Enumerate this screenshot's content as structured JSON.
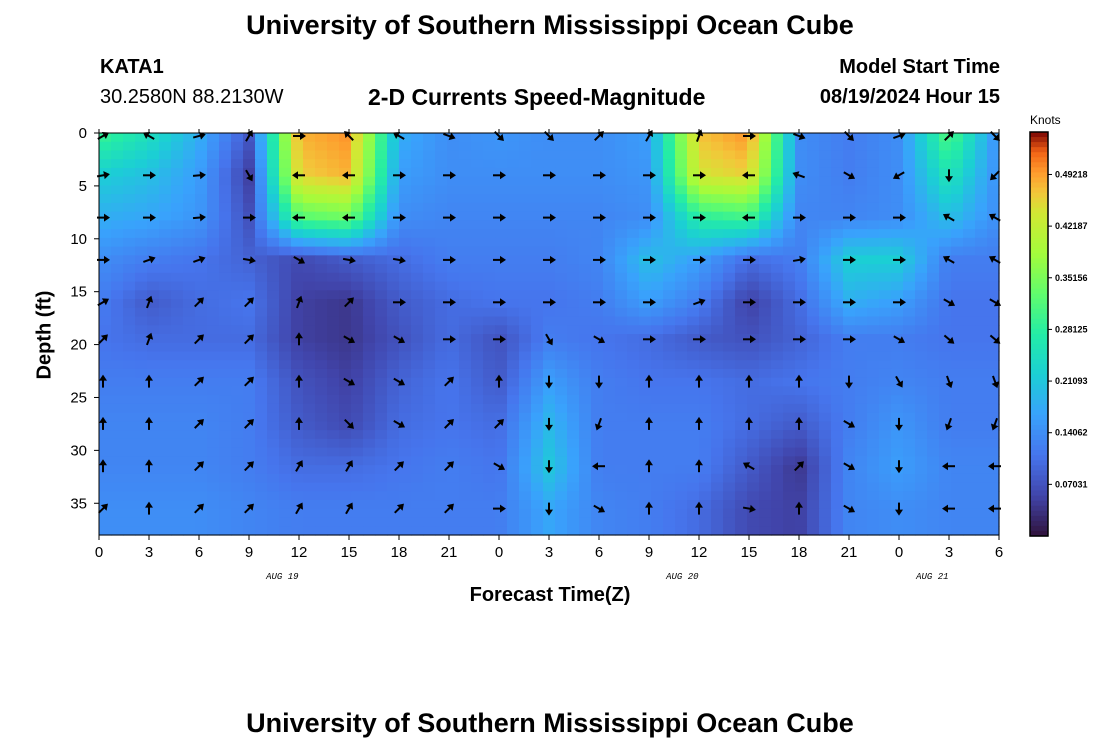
{
  "header": {
    "title": "University of Southern Mississippi Ocean Cube",
    "station": "KATA1",
    "coords": "30.2580N  88.2130W",
    "subtitle": "2-D Currents Speed-Magnitude",
    "model_start_label": "Model Start Time",
    "model_start_value": "08/19/2024 Hour 15"
  },
  "footer": {
    "title": "University of Southern Mississippi Ocean Cube"
  },
  "chart_data": {
    "type": "heatmap",
    "title": "2-D Currents Speed-Magnitude",
    "xlabel": "Forecast Time(Z)",
    "ylabel": "Depth (ft)",
    "colorbar_label": "Knots",
    "x_tick_labels": [
      "0",
      "3",
      "6",
      "9",
      "12",
      "15",
      "18",
      "21",
      "0",
      "3",
      "6",
      "9",
      "12",
      "15",
      "18",
      "21",
      "0",
      "3",
      "6"
    ],
    "date_labels": [
      {
        "label": "AUG 19",
        "hour": 11
      },
      {
        "label": "AUG 20",
        "hour": 35
      },
      {
        "label": "AUG 21",
        "hour": 50
      }
    ],
    "x_range_hours": [
      0,
      54
    ],
    "y_ticks": [
      0,
      5,
      10,
      15,
      20,
      25,
      30,
      35
    ],
    "ylim": [
      38,
      0
    ],
    "colorbar_ticks": [
      "0.07031",
      "0.14062",
      "0.21093",
      "0.28125",
      "0.35156",
      "0.42187",
      "0.49218"
    ],
    "colorbar_range": [
      0,
      0.55
    ],
    "depths": [
      0,
      4,
      8,
      12,
      16,
      19.5,
      23.5,
      27.5,
      31.5,
      35.5
    ],
    "times": [
      0,
      3,
      6,
      9,
      12,
      15,
      18,
      21,
      24,
      27,
      30,
      33,
      36,
      39,
      42,
      45,
      48,
      51,
      54
    ],
    "speed": [
      [
        0.3,
        0.25,
        0.18,
        0.08,
        0.48,
        0.5,
        0.18,
        0.14,
        0.15,
        0.14,
        0.14,
        0.16,
        0.47,
        0.5,
        0.14,
        0.12,
        0.14,
        0.32,
        0.14
      ],
      [
        0.22,
        0.2,
        0.16,
        0.05,
        0.46,
        0.48,
        0.16,
        0.14,
        0.14,
        0.14,
        0.14,
        0.15,
        0.44,
        0.46,
        0.14,
        0.12,
        0.14,
        0.26,
        0.14
      ],
      [
        0.18,
        0.17,
        0.15,
        0.07,
        0.32,
        0.34,
        0.14,
        0.13,
        0.13,
        0.13,
        0.13,
        0.14,
        0.28,
        0.3,
        0.13,
        0.13,
        0.14,
        0.2,
        0.14
      ],
      [
        0.14,
        0.12,
        0.11,
        0.09,
        0.06,
        0.08,
        0.1,
        0.12,
        0.12,
        0.12,
        0.13,
        0.2,
        0.16,
        0.1,
        0.12,
        0.22,
        0.22,
        0.12,
        0.12
      ],
      [
        0.12,
        0.08,
        0.1,
        0.11,
        0.05,
        0.04,
        0.08,
        0.1,
        0.11,
        0.11,
        0.12,
        0.16,
        0.12,
        0.05,
        0.1,
        0.18,
        0.16,
        0.11,
        0.11
      ],
      [
        0.11,
        0.1,
        0.1,
        0.1,
        0.05,
        0.04,
        0.07,
        0.1,
        0.07,
        0.12,
        0.11,
        0.1,
        0.08,
        0.07,
        0.09,
        0.12,
        0.12,
        0.11,
        0.11
      ],
      [
        0.12,
        0.12,
        0.12,
        0.12,
        0.07,
        0.05,
        0.09,
        0.11,
        0.08,
        0.16,
        0.12,
        0.11,
        0.11,
        0.1,
        0.11,
        0.12,
        0.13,
        0.12,
        0.12
      ],
      [
        0.13,
        0.13,
        0.13,
        0.12,
        0.08,
        0.06,
        0.1,
        0.11,
        0.1,
        0.19,
        0.12,
        0.12,
        0.12,
        0.1,
        0.08,
        0.12,
        0.15,
        0.12,
        0.12
      ],
      [
        0.13,
        0.13,
        0.13,
        0.12,
        0.1,
        0.1,
        0.11,
        0.12,
        0.11,
        0.21,
        0.12,
        0.12,
        0.12,
        0.08,
        0.04,
        0.13,
        0.16,
        0.13,
        0.13
      ],
      [
        0.14,
        0.14,
        0.14,
        0.13,
        0.12,
        0.12,
        0.12,
        0.12,
        0.12,
        0.17,
        0.13,
        0.12,
        0.1,
        0.06,
        0.05,
        0.13,
        0.14,
        0.13,
        0.13
      ]
    ],
    "arrow_directions_deg": [
      [
        60,
        300,
        75,
        30,
        90,
        315,
        300,
        110,
        135,
        135,
        45,
        30,
        20,
        90,
        110,
        135,
        70,
        45,
        135
      ],
      [
        80,
        90,
        85,
        150,
        270,
        270,
        90,
        90,
        90,
        90,
        90,
        90,
        90,
        270,
        290,
        120,
        240,
        180,
        225
      ],
      [
        90,
        90,
        85,
        90,
        270,
        270,
        90,
        90,
        90,
        90,
        90,
        90,
        90,
        270,
        90,
        90,
        90,
        300,
        300
      ],
      [
        90,
        70,
        70,
        100,
        120,
        100,
        100,
        90,
        90,
        90,
        90,
        90,
        90,
        90,
        80,
        90,
        90,
        300,
        300
      ],
      [
        60,
        20,
        45,
        45,
        20,
        45,
        90,
        90,
        90,
        90,
        90,
        90,
        70,
        90,
        90,
        90,
        90,
        120,
        120
      ],
      [
        45,
        20,
        45,
        45,
        0,
        120,
        120,
        90,
        90,
        150,
        120,
        90,
        90,
        90,
        90,
        90,
        120,
        130,
        130
      ],
      [
        0,
        0,
        45,
        45,
        0,
        120,
        120,
        45,
        0,
        180,
        180,
        0,
        0,
        0,
        0,
        180,
        150,
        160,
        160
      ],
      [
        0,
        0,
        45,
        45,
        0,
        135,
        120,
        45,
        45,
        180,
        200,
        0,
        0,
        0,
        0,
        120,
        180,
        200,
        200
      ],
      [
        0,
        0,
        45,
        45,
        30,
        30,
        45,
        45,
        120,
        180,
        270,
        0,
        0,
        300,
        45,
        120,
        180,
        270,
        270
      ],
      [
        45,
        0,
        45,
        45,
        30,
        30,
        45,
        45,
        90,
        180,
        120,
        0,
        0,
        100,
        0,
        120,
        180,
        270,
        270
      ]
    ]
  }
}
